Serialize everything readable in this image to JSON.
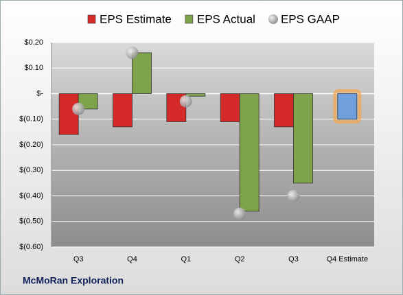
{
  "chart_data": {
    "type": "bar",
    "categories": [
      "Q3",
      "Q4",
      "Q1",
      "Q2",
      "Q3",
      "Q4 Estimate"
    ],
    "series": [
      {
        "name": "EPS Estimate",
        "color": "#d42a2a",
        "values": [
          -0.16,
          -0.13,
          -0.11,
          -0.11,
          -0.13,
          -0.1
        ]
      },
      {
        "name": "EPS Actual",
        "color": "#7ea34a",
        "values": [
          -0.06,
          0.16,
          -0.01,
          -0.46,
          -0.35,
          null
        ]
      },
      {
        "name": "EPS GAAP",
        "color": "#b8b8b8",
        "values": [
          -0.06,
          0.16,
          -0.03,
          -0.47,
          -0.4,
          null
        ],
        "marker": "circle"
      }
    ],
    "forecast_color": "#6f9fdc",
    "ylim": [
      -0.6,
      0.2
    ],
    "yticks": [
      {
        "value": 0.2,
        "label": "$0.20"
      },
      {
        "value": 0.1,
        "label": "$0.10"
      },
      {
        "value": 0,
        "label": "$-"
      },
      {
        "value": -0.1,
        "label": "$(0.10)"
      },
      {
        "value": -0.2,
        "label": "$(0.20)"
      },
      {
        "value": -0.3,
        "label": "$(0.30)"
      },
      {
        "value": -0.4,
        "label": "$(0.40)"
      },
      {
        "value": -0.5,
        "label": "$(0.50)"
      },
      {
        "value": -0.6,
        "label": "$(0.60)"
      }
    ],
    "grid": true,
    "footer": "McMoRan Exploration"
  }
}
